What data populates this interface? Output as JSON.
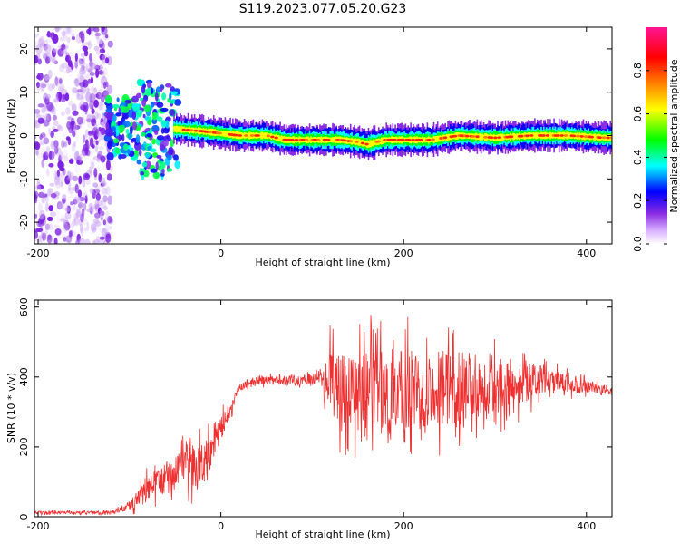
{
  "title": "S119.2023.077.05.20.G23",
  "chart_data": [
    {
      "type": "heatmap",
      "title": "S119.2023.077.05.20.G23",
      "xlabel": "Height of straight line (km)",
      "ylabel": "Frequency (Hz)",
      "xlim": [
        -204,
        428
      ],
      "ylim": [
        -25,
        25
      ],
      "xticks": [
        "-200",
        "0",
        "200",
        "400"
      ],
      "yticks": [
        "-20",
        "-10",
        "0",
        "10",
        "20"
      ],
      "colorbar": {
        "label": "Normalized spectral amplitude",
        "range": [
          0.0,
          1.0
        ],
        "ticks": [
          "0.0",
          "0.2",
          "0.4",
          "0.6",
          "0.8"
        ],
        "colors": [
          "#ffffff",
          "#8a2be2",
          "#0000ff",
          "#00ffff",
          "#00ff00",
          "#ffff00",
          "#ff8000",
          "#ff0000",
          "#ff1493"
        ]
      },
      "ridge": {
        "x": [
          -50,
          -20,
          0,
          20,
          50,
          70,
          100,
          130,
          150,
          160,
          180,
          200,
          230,
          260,
          300,
          340,
          380,
          420
        ],
        "y": [
          1.5,
          1.0,
          0.5,
          0,
          0,
          -1,
          -1,
          -1,
          -1.5,
          -2,
          -1,
          -1,
          -1,
          0,
          -0.5,
          0,
          0,
          -0.5
        ]
      },
      "scatter_region": {
        "x": [
          -204,
          -120
        ],
        "y": [
          -25,
          25
        ]
      },
      "grid": false,
      "legend": "none"
    },
    {
      "type": "line",
      "xlabel": "Height of straight line (km)",
      "ylabel": "SNR (10 * v/v)",
      "xlim": [
        -204,
        428
      ],
      "ylim": [
        0,
        620
      ],
      "xticks": [
        "-200",
        "0",
        "200",
        "400"
      ],
      "yticks": [
        "0",
        "200",
        "400",
        "600"
      ],
      "color": "#ef3030",
      "envelope": {
        "x": [
          -204,
          -120,
          -100,
          -80,
          -50,
          -20,
          0,
          20,
          40,
          80,
          110,
          120,
          150,
          180,
          200,
          250,
          300,
          350,
          400,
          428
        ],
        "mean": [
          12,
          12,
          30,
          80,
          130,
          150,
          250,
          370,
          390,
          390,
          395,
          380,
          360,
          360,
          360,
          370,
          380,
          390,
          370,
          360
        ],
        "spread": [
          6,
          6,
          20,
          50,
          70,
          90,
          50,
          15,
          15,
          20,
          25,
          140,
          160,
          180,
          170,
          150,
          120,
          60,
          25,
          20
        ]
      },
      "grid": false,
      "legend": "none"
    }
  ]
}
